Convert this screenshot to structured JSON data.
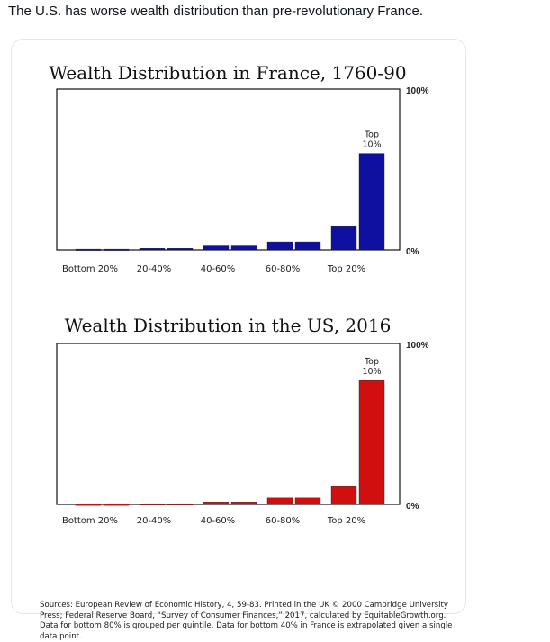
{
  "post": {
    "text": "The U.S. has worse wealth distribution than pre-revolutionary France."
  },
  "chart_data": [
    {
      "type": "bar",
      "title": "Wealth Distribution in France, 1760-90",
      "categories": [
        "Bottom 20%",
        "Bottom 20%",
        "20-40%",
        "20-40%",
        "40-60%",
        "40-60%",
        "60-80%",
        "60-80%",
        "Top 20%",
        "Top 20%"
      ],
      "tick_labels": [
        "Bottom 20%",
        "20-40%",
        "40-60%",
        "60-80%",
        "Top 20%"
      ],
      "values": [
        0.5,
        0.5,
        1,
        1,
        2.5,
        2.5,
        5,
        5,
        15,
        60
      ],
      "ylim": [
        0,
        100
      ],
      "ytick_labels": [
        "100%",
        "0%"
      ],
      "annotation": "Top 10%",
      "bar_color": "#0f0fa0",
      "grid": false
    },
    {
      "type": "bar",
      "title": "Wealth Distribution in the US, 2016",
      "categories": [
        "Bottom 20%",
        "Bottom 20%",
        "20-40%",
        "20-40%",
        "40-60%",
        "40-60%",
        "60-80%",
        "60-80%",
        "Top 20%",
        "Top 20%"
      ],
      "tick_labels": [
        "Bottom 20%",
        "20-40%",
        "40-60%",
        "60-80%",
        "Top 20%"
      ],
      "values": [
        0.2,
        0.2,
        0.4,
        0.4,
        1.5,
        1.5,
        4,
        4,
        11,
        77
      ],
      "ylim": [
        0,
        100
      ],
      "ytick_labels": [
        "100%",
        "0%"
      ],
      "annotation": "Top 10%",
      "bar_color": "#d20f0f",
      "grid": false
    }
  ],
  "sources": "Sources: European Review of Economic History, 4, 59-83. Printed in the UK © 2000 Cambridge University Press; Federal Reserve Board, “Survey of Consumer Finances,” 2017, calculated by EquitableGrowth.org. Data for bottom 80% is grouped per quintile. Data for bottom 40% in France is extrapolated given a single data point."
}
